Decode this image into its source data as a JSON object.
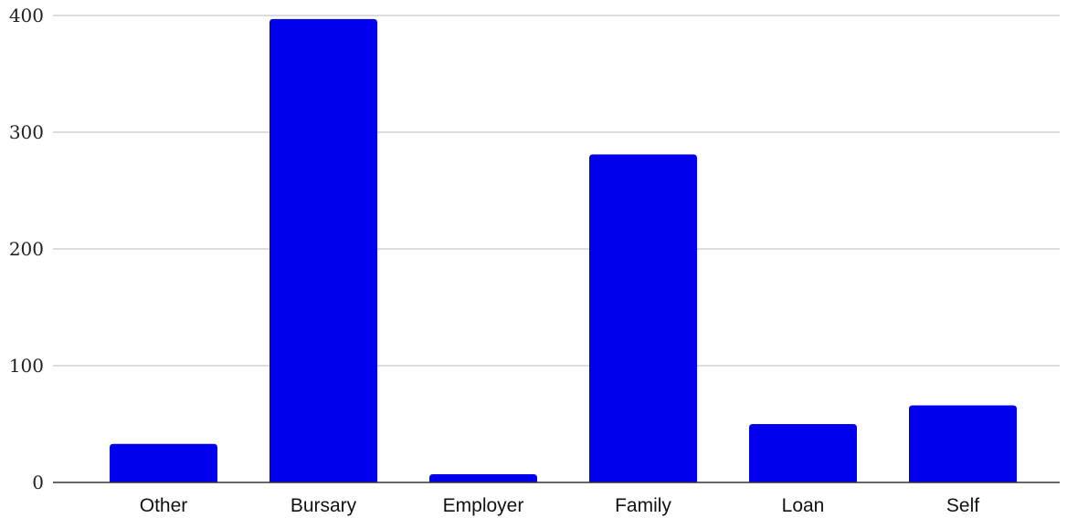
{
  "chart_data": {
    "type": "bar",
    "title": "",
    "xlabel": "",
    "ylabel": "",
    "categories": [
      "Other",
      "Bursary",
      "Employer",
      "Family",
      "Loan",
      "Self"
    ],
    "values": [
      33,
      397,
      7,
      281,
      50,
      66
    ],
    "ylim": [
      0,
      400
    ],
    "yticks": [
      0,
      100,
      200,
      300,
      400
    ],
    "grid": true,
    "legend": "none",
    "bar_color": "#0000ee"
  }
}
